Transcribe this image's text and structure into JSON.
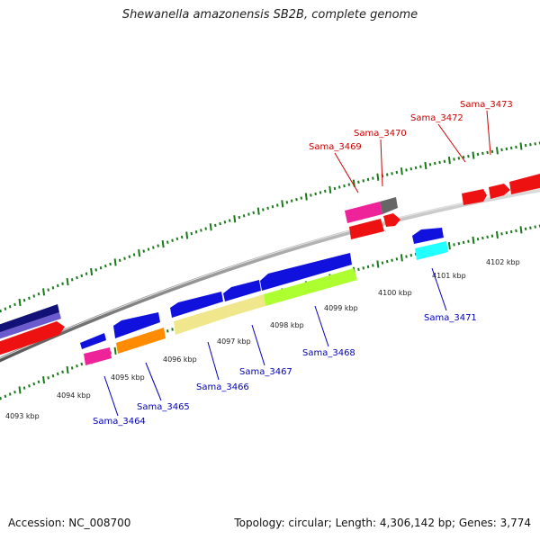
{
  "header": {
    "title": "Shewanella amazonensis SB2B, complete genome"
  },
  "footer": {
    "accession": "Accession: NC_008700",
    "info": "Topology: circular; Length: 4,306,142 bp; Genes: 3,774"
  },
  "map": {
    "tick_labels": [
      "4093 kbp",
      "4094 kbp",
      "4095 kbp",
      "4096 kbp",
      "4097 kbp",
      "4098 kbp",
      "4099 kbp",
      "4100 kbp",
      "4101 kbp",
      "4102 kbp"
    ],
    "genes_forward": [
      "Sama_3469",
      "Sama_3470",
      "Sama_3472",
      "Sama_3473"
    ],
    "genes_reverse": [
      "Sama_3464",
      "Sama_3465",
      "Sama_3466",
      "Sama_3467",
      "Sama_3468",
      "Sama_3471"
    ],
    "colors": {
      "forward_label": "#cc0000",
      "reverse_label": "#0000bb",
      "backbone": "#888888",
      "ticks": "#1a7a1a",
      "red": "#ee1111",
      "blue": "#1111dd",
      "navy": "#111177",
      "slate": "#6a5acd",
      "magenta": "#ee2299",
      "orange": "#ff8c00",
      "khaki": "#f0e68c",
      "lime": "#adff2f",
      "cyan": "#22ffff",
      "gray": "#666666"
    }
  }
}
